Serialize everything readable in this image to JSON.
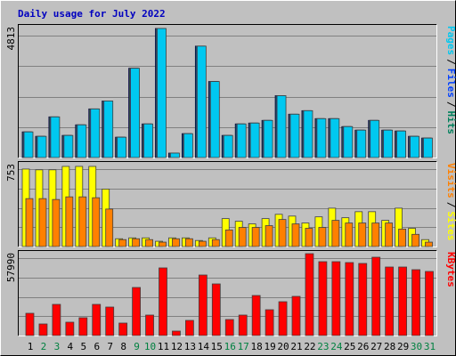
{
  "chart_data": [
    {
      "type": "bar",
      "title": "Daily usage for July 2022",
      "ylim": [
        0,
        4813
      ],
      "yticks": [
        4813
      ],
      "legend_separator": "/",
      "series": [
        {
          "name": "Hits",
          "color": "#00805c",
          "values": [
            943,
            780,
            1496,
            813,
            1203,
            1789,
            2081,
            748,
            3285,
            1236,
            4748,
            163,
            878,
            4098,
            2797,
            813,
            1236,
            1268,
            1366,
            2276,
            1594,
            1724,
            1431,
            1431,
            1138,
            1008,
            1366,
            1008,
            976,
            780,
            716
          ]
        },
        {
          "name": "Files",
          "color": "#0040ff",
          "values": [
            943,
            780,
            1496,
            813,
            1203,
            1789,
            2081,
            748,
            3285,
            1236,
            4748,
            163,
            878,
            4098,
            2797,
            813,
            1236,
            1268,
            1366,
            2276,
            1594,
            1724,
            1431,
            1431,
            1138,
            1008,
            1366,
            1008,
            976,
            780,
            716
          ]
        },
        {
          "name": "Pages",
          "color": "#00c8f0",
          "values": [
            943,
            780,
            1496,
            813,
            1203,
            1789,
            2081,
            748,
            3285,
            1236,
            4748,
            163,
            878,
            4098,
            2797,
            813,
            1236,
            1268,
            1366,
            2276,
            1594,
            1724,
            1431,
            1431,
            1138,
            1008,
            1366,
            1008,
            976,
            780,
            716
          ]
        }
      ]
    },
    {
      "type": "bar",
      "ylim": [
        0,
        753
      ],
      "yticks": [
        753
      ],
      "legend_separator": "/",
      "series": [
        {
          "name": "Sites",
          "color": "#ffff00",
          "values": [
            705,
            698,
            698,
            729,
            729,
            729,
            523,
            71,
            79,
            79,
            48,
            79,
            79,
            55,
            79,
            254,
            230,
            206,
            254,
            293,
            277,
            214,
            270,
            349,
            262,
            317,
            317,
            238,
            349,
            166,
            63
          ]
        },
        {
          "name": "Visits",
          "color": "#ff8000",
          "values": [
            436,
            436,
            428,
            452,
            452,
            444,
            341,
            63,
            71,
            63,
            40,
            71,
            71,
            48,
            63,
            151,
            174,
            174,
            190,
            246,
            206,
            166,
            174,
            238,
            214,
            214,
            214,
            214,
            159,
            111,
            40
          ]
        }
      ]
    },
    {
      "type": "bar",
      "ylim": [
        0,
        57990
      ],
      "yticks": [
        57990
      ],
      "categories": [
        "1",
        "2",
        "3",
        "4",
        "5",
        "6",
        "7",
        "8",
        "9",
        "10",
        "11",
        "12",
        "13",
        "14",
        "15",
        "16",
        "17",
        "18",
        "19",
        "20",
        "21",
        "22",
        "23",
        "24",
        "25",
        "26",
        "27",
        "28",
        "29",
        "30",
        "31"
      ],
      "label_colors": [
        "#000000",
        "#008040",
        "#008040",
        "#000000",
        "#000000",
        "#000000",
        "#000000",
        "#000000",
        "#008040",
        "#008040",
        "#000000",
        "#000000",
        "#000000",
        "#000000",
        "#000000",
        "#008040",
        "#008040",
        "#000000",
        "#000000",
        "#000000",
        "#000000",
        "#000000",
        "#008040",
        "#008040",
        "#000000",
        "#000000",
        "#000000",
        "#000000",
        "#000000",
        "#008040",
        "#008040"
      ],
      "series": [
        {
          "name": "KBytes",
          "color": "#ff0000",
          "values": [
            15589,
            8106,
            21824,
            9353,
            12471,
            21824,
            19953,
            8730,
            33671,
            14341,
            47389,
            3118,
            10600,
            42401,
            36165,
            11224,
            14341,
            28060,
            18083,
            23695,
            27436,
            57366,
            51754,
            51754,
            51130,
            50507,
            54872,
            48012,
            48012,
            46142,
            44895
          ]
        }
      ]
    }
  ]
}
